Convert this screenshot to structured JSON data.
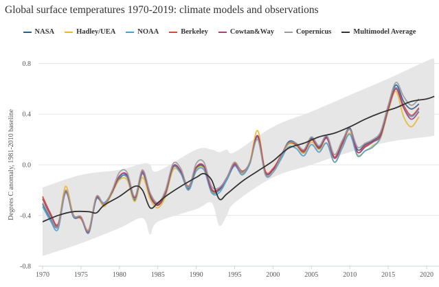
{
  "chart_data": {
    "type": "line",
    "title": "Global surface temperatures 1970-2019: climate models and observations",
    "ylabel": "Degrees C anomaly, 1981-2010 baseline",
    "xlabel": "",
    "xlim": [
      1970,
      2021
    ],
    "ylim": [
      -0.8,
      0.8
    ],
    "x_ticks": [
      "1970",
      "1975",
      "1980",
      "1985",
      "1990",
      "1995",
      "2000",
      "2005",
      "2010",
      "2015",
      "2020"
    ],
    "y_ticks": [
      "0.8",
      "0.4",
      "0.0",
      "-0.4",
      "-0.8"
    ],
    "grid": "horizontal",
    "legend_position": "top",
    "x": [
      1970,
      1971,
      1972,
      1973,
      1974,
      1975,
      1976,
      1977,
      1978,
      1979,
      1980,
      1981,
      1982,
      1983,
      1984,
      1985,
      1986,
      1987,
      1988,
      1989,
      1990,
      1991,
      1992,
      1993,
      1994,
      1995,
      1996,
      1997,
      1998,
      1999,
      2000,
      2001,
      2002,
      2003,
      2004,
      2005,
      2006,
      2007,
      2008,
      2009,
      2010,
      2011,
      2012,
      2013,
      2014,
      2015,
      2016,
      2017,
      2018,
      2019
    ],
    "series": [
      {
        "name": "NASA",
        "color": "#2b5c8a",
        "values": [
          -0.31,
          -0.42,
          -0.49,
          -0.21,
          -0.41,
          -0.42,
          -0.52,
          -0.27,
          -0.32,
          -0.23,
          -0.11,
          -0.09,
          -0.28,
          -0.07,
          -0.25,
          -0.32,
          -0.23,
          -0.02,
          -0.06,
          -0.19,
          -0.03,
          -0.02,
          -0.21,
          -0.2,
          -0.11,
          0.01,
          -0.07,
          0.02,
          0.22,
          -0.06,
          -0.04,
          0.06,
          0.18,
          0.17,
          0.11,
          0.21,
          0.14,
          0.22,
          0.06,
          0.18,
          0.29,
          0.12,
          0.16,
          0.19,
          0.25,
          0.46,
          0.63,
          0.5,
          0.44,
          0.48
        ]
      },
      {
        "name": "Hadley/UEA",
        "color": "#e8b82a",
        "values": [
          -0.26,
          -0.4,
          -0.47,
          -0.17,
          -0.39,
          -0.43,
          -0.51,
          -0.25,
          -0.33,
          -0.23,
          -0.12,
          -0.12,
          -0.29,
          -0.1,
          -0.27,
          -0.34,
          -0.25,
          -0.04,
          -0.07,
          -0.2,
          -0.04,
          -0.03,
          -0.21,
          -0.19,
          -0.1,
          0.02,
          -0.07,
          0.03,
          0.27,
          -0.05,
          -0.03,
          0.06,
          0.16,
          0.15,
          0.09,
          0.18,
          0.12,
          0.17,
          0.02,
          0.14,
          0.25,
          0.08,
          0.11,
          0.15,
          0.21,
          0.42,
          0.58,
          0.38,
          0.3,
          0.38
        ]
      },
      {
        "name": "NOAA",
        "color": "#4a9fd4",
        "values": [
          -0.33,
          -0.44,
          -0.51,
          -0.22,
          -0.41,
          -0.42,
          -0.54,
          -0.27,
          -0.3,
          -0.22,
          -0.1,
          -0.1,
          -0.27,
          -0.07,
          -0.24,
          -0.31,
          -0.23,
          -0.02,
          -0.07,
          -0.2,
          -0.05,
          -0.04,
          -0.22,
          -0.22,
          -0.12,
          -0.01,
          -0.08,
          0.01,
          0.22,
          -0.07,
          -0.06,
          0.04,
          0.14,
          0.13,
          0.07,
          0.16,
          0.1,
          0.17,
          0.02,
          0.13,
          0.24,
          0.07,
          0.11,
          0.14,
          0.22,
          0.44,
          0.61,
          0.45,
          0.38,
          0.44
        ]
      },
      {
        "name": "Berkeley",
        "color": "#d04a3c",
        "values": [
          -0.25,
          -0.38,
          -0.47,
          -0.21,
          -0.4,
          -0.41,
          -0.52,
          -0.26,
          -0.31,
          -0.22,
          -0.09,
          -0.08,
          -0.26,
          -0.05,
          -0.23,
          -0.31,
          -0.22,
          -0.01,
          -0.05,
          -0.17,
          -0.02,
          -0.01,
          -0.19,
          -0.19,
          -0.1,
          0.01,
          -0.05,
          0.02,
          0.23,
          -0.05,
          -0.03,
          0.07,
          0.17,
          0.16,
          0.11,
          0.2,
          0.13,
          0.21,
          0.06,
          0.17,
          0.28,
          0.1,
          0.15,
          0.18,
          0.24,
          0.45,
          0.6,
          0.47,
          0.39,
          0.45
        ]
      },
      {
        "name": "Cowtan&Way",
        "color": "#a8407a",
        "values": [
          -0.27,
          -0.39,
          -0.48,
          -0.21,
          -0.4,
          -0.42,
          -0.53,
          -0.26,
          -0.31,
          -0.22,
          -0.09,
          -0.08,
          -0.26,
          -0.06,
          -0.24,
          -0.32,
          -0.22,
          -0.01,
          -0.05,
          -0.18,
          -0.02,
          -0.01,
          -0.2,
          -0.19,
          -0.1,
          0.0,
          -0.06,
          0.02,
          0.23,
          -0.06,
          -0.04,
          0.06,
          0.17,
          0.16,
          0.1,
          0.2,
          0.13,
          0.21,
          0.05,
          0.16,
          0.28,
          0.1,
          0.14,
          0.18,
          0.23,
          0.44,
          0.6,
          0.45,
          0.36,
          0.42
        ]
      },
      {
        "name": "Copernicus",
        "color": "#9a9a9a",
        "values": [
          -0.3,
          -0.41,
          -0.49,
          -0.2,
          -0.4,
          -0.41,
          -0.52,
          -0.25,
          -0.31,
          -0.21,
          -0.06,
          -0.06,
          -0.25,
          -0.04,
          -0.22,
          -0.3,
          -0.2,
          0.01,
          -0.03,
          -0.18,
          0.01,
          0.02,
          -0.17,
          -0.18,
          -0.1,
          0.02,
          -0.06,
          0.02,
          0.2,
          -0.08,
          -0.06,
          0.06,
          0.17,
          0.17,
          0.12,
          0.22,
          0.15,
          0.23,
          0.08,
          0.19,
          0.28,
          0.14,
          0.17,
          0.2,
          0.26,
          0.47,
          0.65,
          0.54,
          0.47,
          0.52
        ]
      }
    ],
    "multimodel_average": {
      "name": "Multimodel Average",
      "color": "#333333",
      "x": [
        1970,
        1972,
        1974,
        1976,
        1977,
        1978,
        1980,
        1982,
        1983,
        1984,
        1985,
        1986,
        1988,
        1990,
        1991,
        1992,
        1993,
        1994,
        1996,
        1998,
        2000,
        2002,
        2004,
        2006,
        2008,
        2010,
        2012,
        2014,
        2016,
        2018,
        2020,
        2021
      ],
      "values": [
        -0.45,
        -0.4,
        -0.37,
        -0.37,
        -0.38,
        -0.32,
        -0.25,
        -0.17,
        -0.2,
        -0.34,
        -0.3,
        -0.25,
        -0.17,
        -0.1,
        -0.07,
        -0.12,
        -0.27,
        -0.23,
        -0.13,
        -0.05,
        0.03,
        0.13,
        0.17,
        0.22,
        0.25,
        0.3,
        0.36,
        0.41,
        0.45,
        0.5,
        0.52,
        0.54
      ]
    },
    "model_range": {
      "color": "#e6e6e6",
      "x": [
        1970,
        1975,
        1980,
        1983,
        1984,
        1985,
        1990,
        1992,
        1993,
        1994,
        1995,
        2000,
        2005,
        2010,
        2015,
        2020,
        2021
      ],
      "lower": [
        -0.72,
        -0.62,
        -0.5,
        -0.42,
        -0.55,
        -0.45,
        -0.35,
        -0.3,
        -0.48,
        -0.4,
        -0.3,
        -0.1,
        0.0,
        0.1,
        0.18,
        0.22,
        0.23
      ],
      "upper": [
        -0.18,
        -0.08,
        -0.04,
        0.01,
        0.0,
        -0.05,
        0.12,
        0.12,
        0.1,
        0.12,
        0.1,
        0.3,
        0.42,
        0.55,
        0.68,
        0.82,
        0.84
      ]
    }
  }
}
